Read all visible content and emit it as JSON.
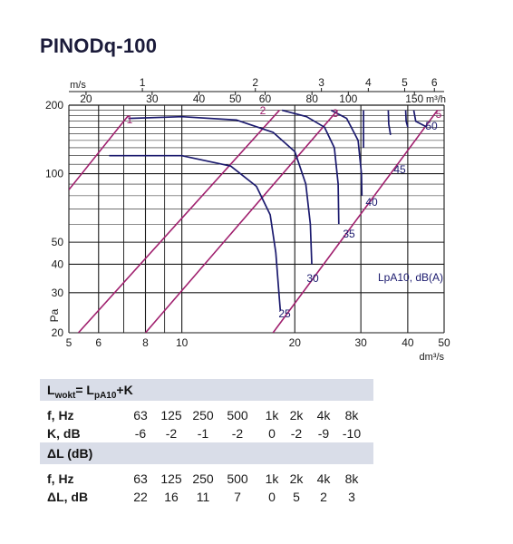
{
  "title": "PINODq-100",
  "chart_data": {
    "type": "line",
    "xlabel": "dm³/s",
    "ylabel": "Pa",
    "x_scale": "log",
    "y_scale": "log",
    "xlim": [
      5,
      50
    ],
    "ylim": [
      20,
      200
    ],
    "x_ticks": [
      5,
      6,
      8,
      10,
      20,
      30,
      40,
      50
    ],
    "y_ticks": [
      20,
      30,
      40,
      50,
      100,
      200
    ],
    "top_axis_ms": {
      "label": "m/s",
      "ticks": [
        1,
        2,
        3,
        4,
        5,
        6
      ]
    },
    "top_axis_m3h": {
      "label": "m³/h",
      "ticks": [
        20,
        30,
        40,
        50,
        60,
        80,
        100,
        150
      ]
    },
    "velocity_lines": [
      {
        "name": "1",
        "points": [
          [
            5,
            85
          ],
          [
            7.2,
            180
          ]
        ]
      },
      {
        "name": "2",
        "points": [
          [
            5.3,
            20
          ],
          [
            18.2,
            190
          ]
        ]
      },
      {
        "name": "3",
        "points": [
          [
            8,
            20
          ],
          [
            26,
            190
          ]
        ]
      },
      {
        "name": "5",
        "points": [
          [
            17.5,
            20
          ],
          [
            48,
            190
          ]
        ]
      }
    ],
    "spl_curves": [
      {
        "name": "25",
        "points": [
          [
            6.4,
            120
          ],
          [
            10,
            120
          ],
          [
            13.5,
            108
          ],
          [
            15.8,
            88
          ],
          [
            17.2,
            66
          ],
          [
            17.8,
            45
          ],
          [
            18.2,
            28
          ],
          [
            18.3,
            25
          ]
        ]
      },
      {
        "name": "30",
        "points": [
          [
            7.2,
            175
          ],
          [
            10,
            178
          ],
          [
            14,
            172
          ],
          [
            17.5,
            152
          ],
          [
            20,
            125
          ],
          [
            21.4,
            90
          ],
          [
            22,
            60
          ],
          [
            22.2,
            40
          ]
        ]
      },
      {
        "name": "35",
        "points": [
          [
            18.5,
            190
          ],
          [
            21.5,
            178
          ],
          [
            24,
            160
          ],
          [
            25.5,
            130
          ],
          [
            26.1,
            90
          ],
          [
            26.2,
            60
          ]
        ]
      },
      {
        "name": "40",
        "points": [
          [
            25,
            190
          ],
          [
            27.5,
            175
          ],
          [
            29.5,
            140
          ],
          [
            30.1,
            100
          ],
          [
            30.2,
            80
          ]
        ]
      },
      {
        "name": "45",
        "points": [
          [
            30.5,
            190
          ],
          [
            30.5,
            160
          ],
          [
            30.5,
            130
          ]
        ]
      },
      {
        "name": "50",
        "points": [
          [
            35.5,
            190
          ],
          [
            35.6,
            165
          ],
          [
            36,
            148
          ]
        ]
      },
      {
        "name": "",
        "points": [
          [
            39.5,
            190
          ],
          [
            39.6,
            170
          ],
          [
            40,
            160
          ]
        ]
      },
      {
        "name": "",
        "points": [
          [
            41.5,
            190
          ],
          [
            42,
            170
          ],
          [
            45,
            160
          ]
        ]
      }
    ],
    "annotation": "LpA10, dB(A)"
  },
  "table_k": {
    "header": "Lwokt= LpA10+K",
    "rows": [
      {
        "label": "f, Hz",
        "values": [
          "63",
          "125",
          "250",
          "500",
          "1k",
          "2k",
          "4k",
          "8k"
        ]
      },
      {
        "label": "K, dB",
        "values": [
          "-6",
          "-2",
          "-1",
          "-2",
          "0",
          "-2",
          "-9",
          "-10"
        ]
      }
    ]
  },
  "table_dl": {
    "header": "ΔL (dB)",
    "rows": [
      {
        "label": "f, Hz",
        "values": [
          "63",
          "125",
          "250",
          "500",
          "1k",
          "2k",
          "4k",
          "8k"
        ]
      },
      {
        "label": "ΔL, dB",
        "values": [
          "22",
          "16",
          "11",
          "7",
          "0",
          "5",
          "2",
          "3"
        ]
      }
    ]
  },
  "colors": {
    "grid": "#1a1a1a",
    "velocity": "#a0206e",
    "spl": "#1b1a6e",
    "header_bg": "#d9dde8"
  }
}
